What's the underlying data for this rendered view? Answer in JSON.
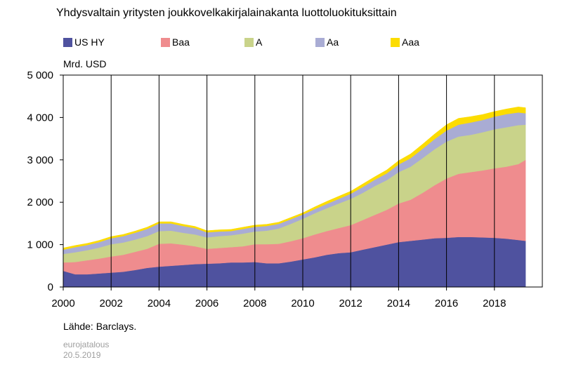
{
  "title": "Yhdysvaltain yritysten joukkovelkakirjalainakanta luottoluokituksittain",
  "unit_label": "Mrd. USD",
  "source": "Lähde: Barclays.",
  "footer": {
    "publisher": "eurojatalous",
    "date": "20.5.2019"
  },
  "colors": {
    "US HY": "#4f529f",
    "Baa": "#ef8c8e",
    "A": "#c9d38a",
    "Aa": "#a9acd4",
    "Aaa": "#fcdc00"
  },
  "chart_data": {
    "type": "area",
    "stacked": true,
    "title": "Yhdysvaltain yritysten joukkovelkakirjalainakanta luottoluokituksittain",
    "ylabel": "Mrd. USD",
    "xlabel": "",
    "xlim": [
      2000,
      2020
    ],
    "ylim": [
      0,
      5000
    ],
    "x_ticks": [
      2000,
      2002,
      2004,
      2006,
      2008,
      2010,
      2012,
      2014,
      2016,
      2018
    ],
    "y_ticks": [
      0,
      1000,
      2000,
      3000,
      4000,
      5000
    ],
    "x_tick_labels": [
      "2000",
      "2002",
      "2004",
      "2006",
      "2008",
      "2010",
      "2012",
      "2014",
      "2016",
      "2018"
    ],
    "y_tick_labels": [
      "0",
      "1 000",
      "2 000",
      "3 000",
      "4 000",
      "5 000"
    ],
    "grid": {
      "vertical": true,
      "horizontal": false
    },
    "legend_position": "top",
    "x": [
      2000.0,
      2000.5,
      2001.0,
      2001.5,
      2002.0,
      2002.5,
      2003.0,
      2003.5,
      2004.0,
      2004.5,
      2005.0,
      2005.5,
      2006.0,
      2006.5,
      2007.0,
      2007.5,
      2008.0,
      2008.5,
      2009.0,
      2009.5,
      2010.0,
      2010.5,
      2011.0,
      2011.5,
      2012.0,
      2012.5,
      2013.0,
      2013.5,
      2014.0,
      2014.5,
      2015.0,
      2015.5,
      2016.0,
      2016.5,
      2017.0,
      2017.5,
      2018.0,
      2018.5,
      2019.0,
      2019.3
    ],
    "series": [
      {
        "name": "US HY",
        "values": [
          380,
          300,
          300,
          320,
          340,
          360,
          400,
          450,
          480,
          500,
          520,
          540,
          550,
          560,
          580,
          580,
          590,
          560,
          560,
          600,
          650,
          700,
          760,
          800,
          820,
          880,
          940,
          1000,
          1060,
          1090,
          1120,
          1150,
          1160,
          1180,
          1180,
          1170,
          1160,
          1140,
          1110,
          1090
        ]
      },
      {
        "name": "Baa",
        "values": [
          200,
          290,
          330,
          350,
          380,
          400,
          430,
          450,
          540,
          530,
          480,
          420,
          350,
          360,
          360,
          380,
          420,
          450,
          460,
          480,
          500,
          540,
          560,
          590,
          640,
          700,
          760,
          820,
          910,
          970,
          1100,
          1250,
          1400,
          1490,
          1530,
          1580,
          1640,
          1700,
          1790,
          1910
        ]
      },
      {
        "name": "A",
        "values": [
          200,
          230,
          240,
          260,
          290,
          290,
          290,
          300,
          300,
          300,
          280,
          280,
          270,
          280,
          280,
          300,
          300,
          320,
          360,
          410,
          460,
          500,
          540,
          580,
          620,
          640,
          680,
          700,
          740,
          780,
          820,
          850,
          870,
          880,
          880,
          900,
          920,
          930,
          920,
          830
        ]
      },
      {
        "name": "Aa",
        "values": [
          100,
          120,
          120,
          130,
          140,
          150,
          160,
          170,
          180,
          170,
          160,
          150,
          120,
          110,
          100,
          110,
          110,
          110,
          110,
          110,
          100,
          100,
          100,
          110,
          120,
          140,
          150,
          160,
          180,
          200,
          220,
          240,
          260,
          280,
          290,
          290,
          300,
          310,
          300,
          270
        ]
      },
      {
        "name": "Aaa",
        "values": [
          40,
          40,
          40,
          40,
          40,
          40,
          40,
          40,
          40,
          40,
          40,
          40,
          40,
          40,
          40,
          40,
          40,
          40,
          40,
          40,
          40,
          50,
          60,
          60,
          60,
          70,
          70,
          80,
          90,
          100,
          110,
          120,
          140,
          150,
          140,
          130,
          120,
          120,
          130,
          130
        ]
      }
    ]
  }
}
